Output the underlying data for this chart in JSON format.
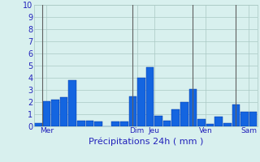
{
  "values": [
    0.3,
    2.1,
    2.2,
    2.4,
    3.8,
    0.5,
    0.5,
    0.4,
    0.0,
    0.4,
    0.4,
    2.5,
    4.0,
    4.9,
    0.9,
    0.5,
    1.4,
    2.0,
    3.1,
    0.6,
    0.2,
    0.8,
    0.3,
    1.8,
    1.2,
    1.2
  ],
  "day_labels": [
    "Mer",
    "Dim",
    "Jeu",
    "Ven",
    "Sam"
  ],
  "day_tick_positions": [
    1.0,
    11.5,
    13.5,
    19.5,
    24.5
  ],
  "vline_positions": [
    0.5,
    11.0,
    18.0,
    23.0
  ],
  "xlabel": "Précipitations 24h ( mm )",
  "ylim": [
    0,
    10
  ],
  "yticks": [
    0,
    1,
    2,
    3,
    4,
    5,
    6,
    7,
    8,
    9,
    10
  ],
  "bar_color": "#1465e0",
  "bar_edge_color": "#0030a0",
  "bg_color": "#d8f0ee",
  "grid_color": "#aac8c4",
  "vline_color": "#606060",
  "xlabel_color": "#2222bb",
  "tick_color": "#2222bb",
  "figsize": [
    3.2,
    2.0
  ],
  "dpi": 100
}
